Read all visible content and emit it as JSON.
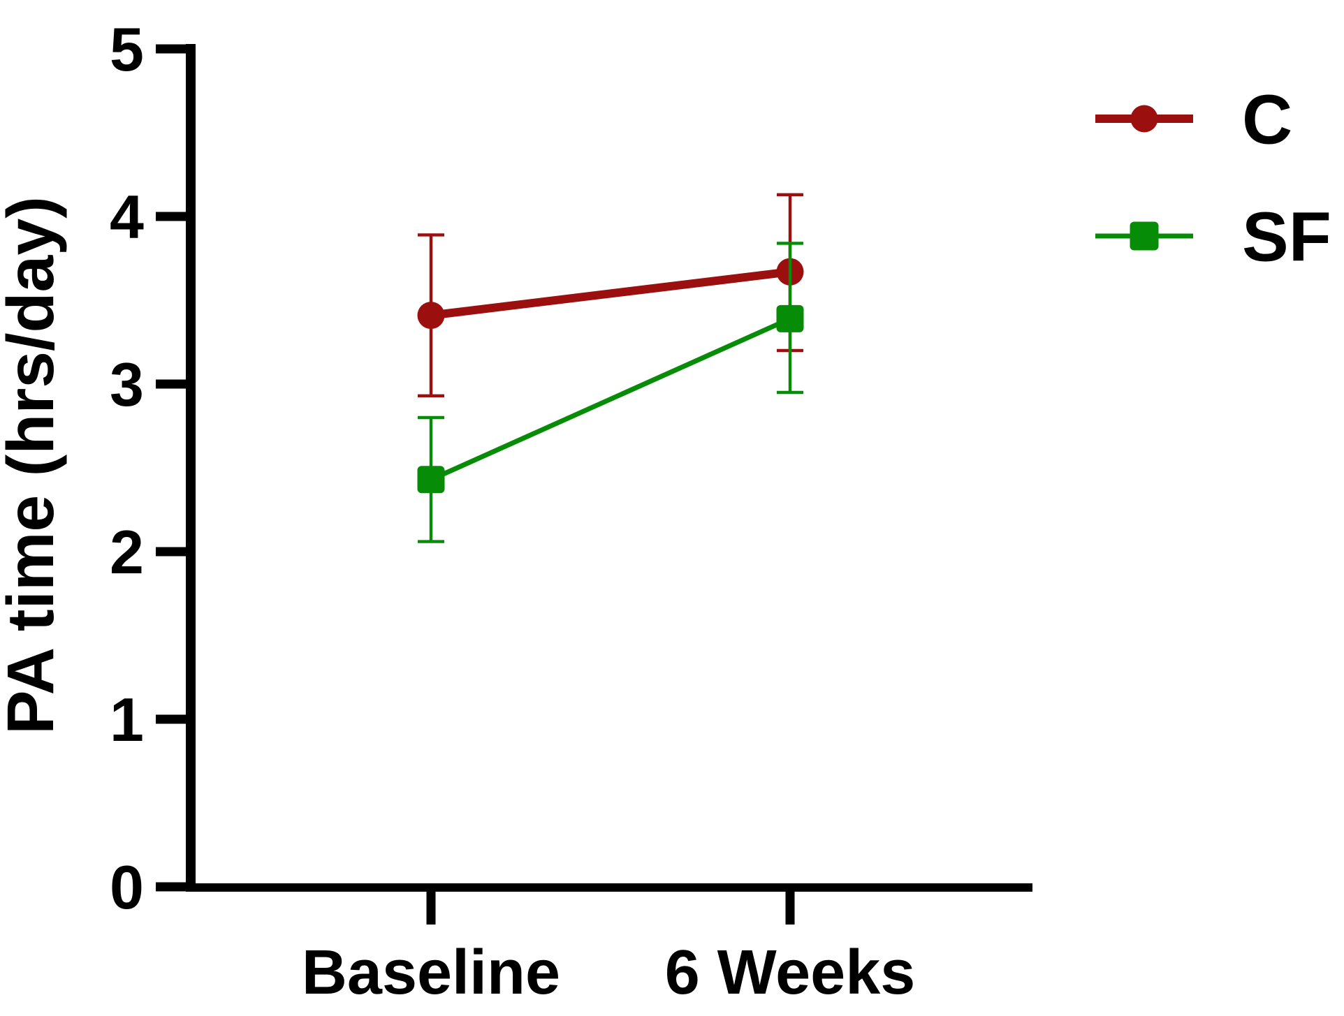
{
  "chart_data": {
    "type": "line",
    "title": "",
    "xlabel": "",
    "ylabel": "PA time (hrs/day)",
    "categories": [
      "Baseline",
      "6 Weeks"
    ],
    "ylim": [
      0,
      5
    ],
    "yticks": [
      0,
      1,
      2,
      3,
      4,
      5
    ],
    "ytick_labels": [
      "0",
      "1",
      "2",
      "3",
      "4",
      "5"
    ],
    "grid": false,
    "legend_position": "top-right",
    "series": [
      {
        "name": "C",
        "marker": "circle",
        "color": "#9B0F0F",
        "values": [
          3.41,
          3.67
        ],
        "error_upper": [
          3.89,
          4.13
        ],
        "error_lower": [
          2.93,
          3.2
        ]
      },
      {
        "name": "SF",
        "marker": "square",
        "color": "#068C06",
        "values": [
          2.43,
          3.39
        ],
        "error_upper": [
          2.8,
          3.84
        ],
        "error_lower": [
          2.06,
          2.95
        ]
      }
    ],
    "colors": {
      "axis": "#000000",
      "background": "#FFFFFF"
    }
  }
}
